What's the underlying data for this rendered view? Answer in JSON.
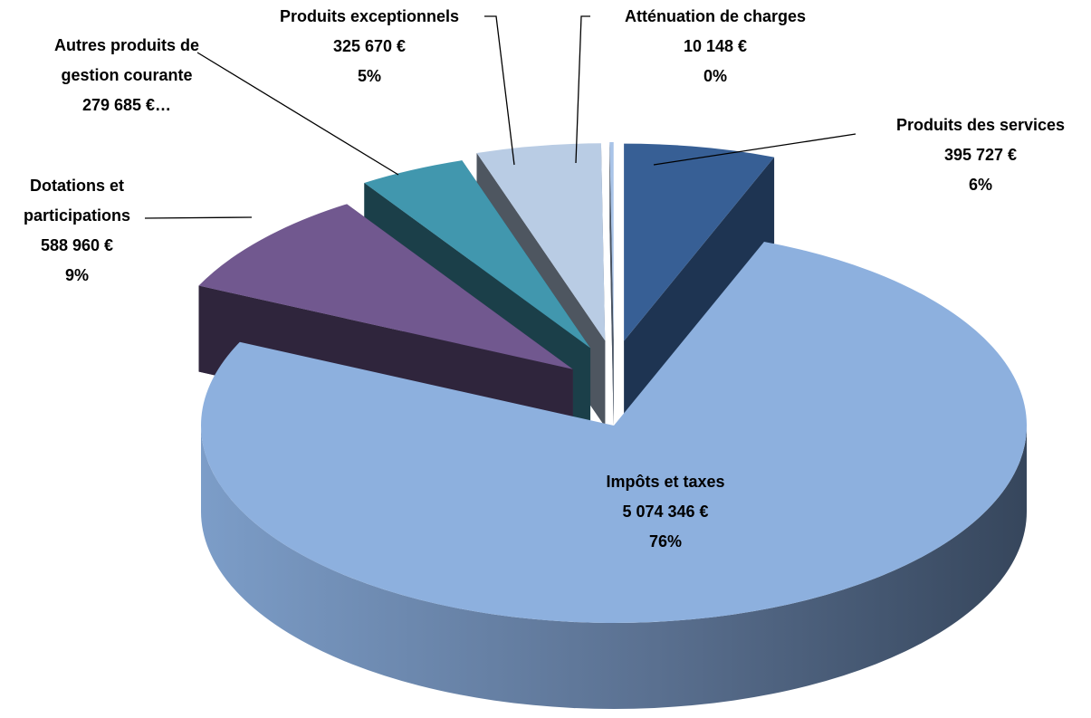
{
  "chart_data": {
    "type": "pie3d",
    "categories": [
      "Produits des services",
      "Impôts et taxes",
      "Dotations et participations",
      "Autres produits de gestion courante",
      "Produits exceptionnels",
      "Atténuation de charges"
    ],
    "values": [
      395727,
      5074346,
      588960,
      279685,
      325670,
      10148
    ],
    "value_labels": [
      "395 727 €",
      "5 074 346 €",
      "588 960 €",
      "279 685 €…",
      "325 670 €",
      "10 148 €"
    ],
    "percent_labels": [
      "6%",
      "76%",
      "9%",
      null,
      "5%",
      "0%"
    ],
    "colors": [
      "#375f95",
      "#8db0de",
      "#71588f",
      "#4197ae",
      "#b9cce4",
      "#a9c4e8"
    ]
  }
}
